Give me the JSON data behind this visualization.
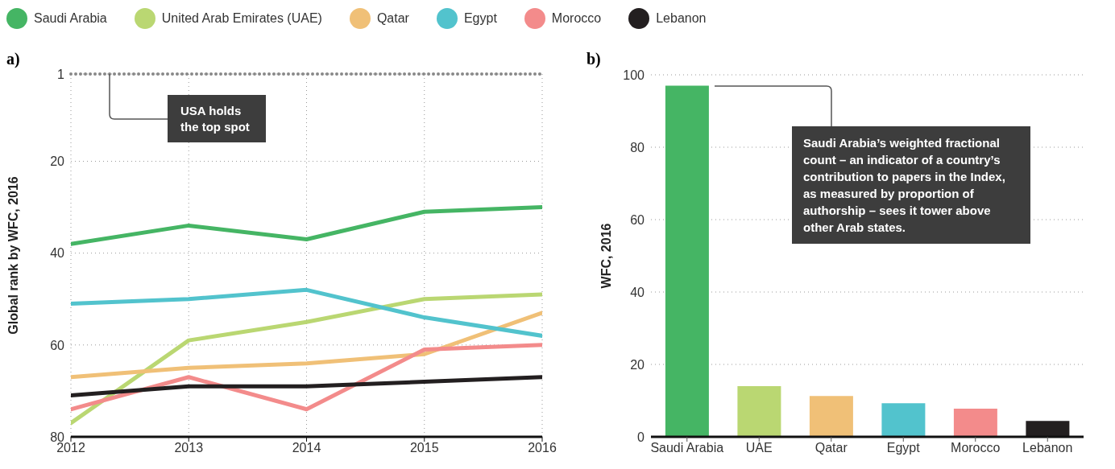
{
  "chart_data": [
    {
      "type": "line",
      "title": "a)",
      "ylabel": "Global rank by WFC, 2016",
      "x": [
        2012,
        2013,
        2014,
        2015,
        2016
      ],
      "xlim": [
        2012,
        2016
      ],
      "xticks": [
        2012,
        2013,
        2014,
        2015,
        2016
      ],
      "ylim": [
        80,
        1
      ],
      "yticks": [
        1,
        20,
        40,
        60,
        80
      ],
      "grid": true,
      "legend": "top",
      "marker": "none",
      "line_style": "solid",
      "ref_lines": [
        {
          "axis": "y",
          "value": 1,
          "label": "USA holds the top spot",
          "color": "#888888",
          "line_style": "dotted"
        }
      ],
      "series": [
        {
          "name": "Saudi Arabia",
          "color": "#45b564",
          "values": [
            38,
            34,
            37,
            31,
            30
          ]
        },
        {
          "name": "United Arab Emirates (UAE)",
          "color": "#bad772",
          "values": [
            77,
            59,
            55,
            50,
            49
          ]
        },
        {
          "name": "Qatar",
          "color": "#f0c077",
          "values": [
            67,
            65,
            64,
            62,
            53
          ]
        },
        {
          "name": "Egypt",
          "color": "#52c3cd",
          "values": [
            51,
            50,
            48,
            54,
            58
          ]
        },
        {
          "name": "Morocco",
          "color": "#f38b8b",
          "values": [
            74,
            67,
            74,
            61,
            60
          ]
        },
        {
          "name": "Lebanon",
          "color": "#231f20",
          "values": [
            71,
            69,
            69,
            68,
            67
          ]
        }
      ]
    },
    {
      "type": "bar",
      "title": "b)",
      "ylabel": "WFC, 2016",
      "categories": [
        "Saudi Arabia",
        "UAE",
        "Qatar",
        "Egypt",
        "Morocco",
        "Lebanon"
      ],
      "values": [
        97,
        14,
        11.3,
        9.3,
        7.8,
        4.4
      ],
      "colors": [
        "#45b564",
        "#bad772",
        "#f0c077",
        "#52c3cd",
        "#f38b8b",
        "#231f20"
      ],
      "ylim": [
        0,
        100
      ],
      "yticks": [
        0,
        20,
        40,
        60,
        80,
        100
      ],
      "grid": "y",
      "annotations": [
        "Saudi Arabia’s weighted fractional count – an indicator of a country’s contribution to papers in the Index, as measured by proportion of authorship – sees it tower above other Arab states."
      ]
    }
  ]
}
